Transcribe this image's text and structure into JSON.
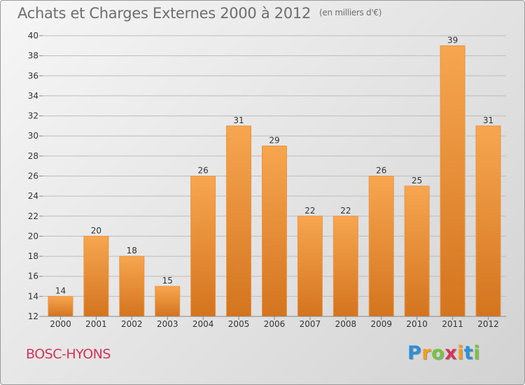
{
  "page": {
    "title": "Achats et Charges Externes 2000 à 2012",
    "subtitle": "(en milliers d'€)",
    "town": "BOSC-HYONS",
    "logo": {
      "text": "Proxiti",
      "letters": [
        {
          "ch": "P",
          "color": "#2f8fd6"
        },
        {
          "ch": "r",
          "color": "#f39c1f"
        },
        {
          "ch": "o",
          "color": "#7cc242"
        },
        {
          "ch": "x",
          "color": "#d2345a"
        },
        {
          "ch": "i",
          "color": "#f39c1f"
        },
        {
          "ch": "t",
          "color": "#2f8fd6"
        },
        {
          "ch": "i",
          "color": "#7cc242"
        }
      ]
    }
  },
  "colors": {
    "bar_light": "#f7a650",
    "bar_dark": "#d4741f",
    "bar_stroke": "#e89545",
    "grid": "#bdbdbd",
    "axis_text": "#333333",
    "title": "#6e6e6e",
    "town": "#d2345a"
  },
  "chart_data": {
    "type": "bar",
    "title": "Achats et Charges Externes 2000 à 2012",
    "subtitle": "(en milliers d'€)",
    "categories": [
      "2000",
      "2001",
      "2002",
      "2003",
      "2004",
      "2005",
      "2006",
      "2007",
      "2008",
      "2009",
      "2010",
      "2011",
      "2012"
    ],
    "values": [
      14,
      20,
      18,
      15,
      26,
      31,
      29,
      22,
      22,
      26,
      25,
      39,
      31
    ],
    "ylim": [
      12,
      40
    ],
    "yticks": [
      12,
      14,
      16,
      18,
      20,
      22,
      24,
      26,
      28,
      30,
      32,
      34,
      36,
      38,
      40
    ],
    "grid": true,
    "xlabel": "",
    "ylabel": ""
  }
}
